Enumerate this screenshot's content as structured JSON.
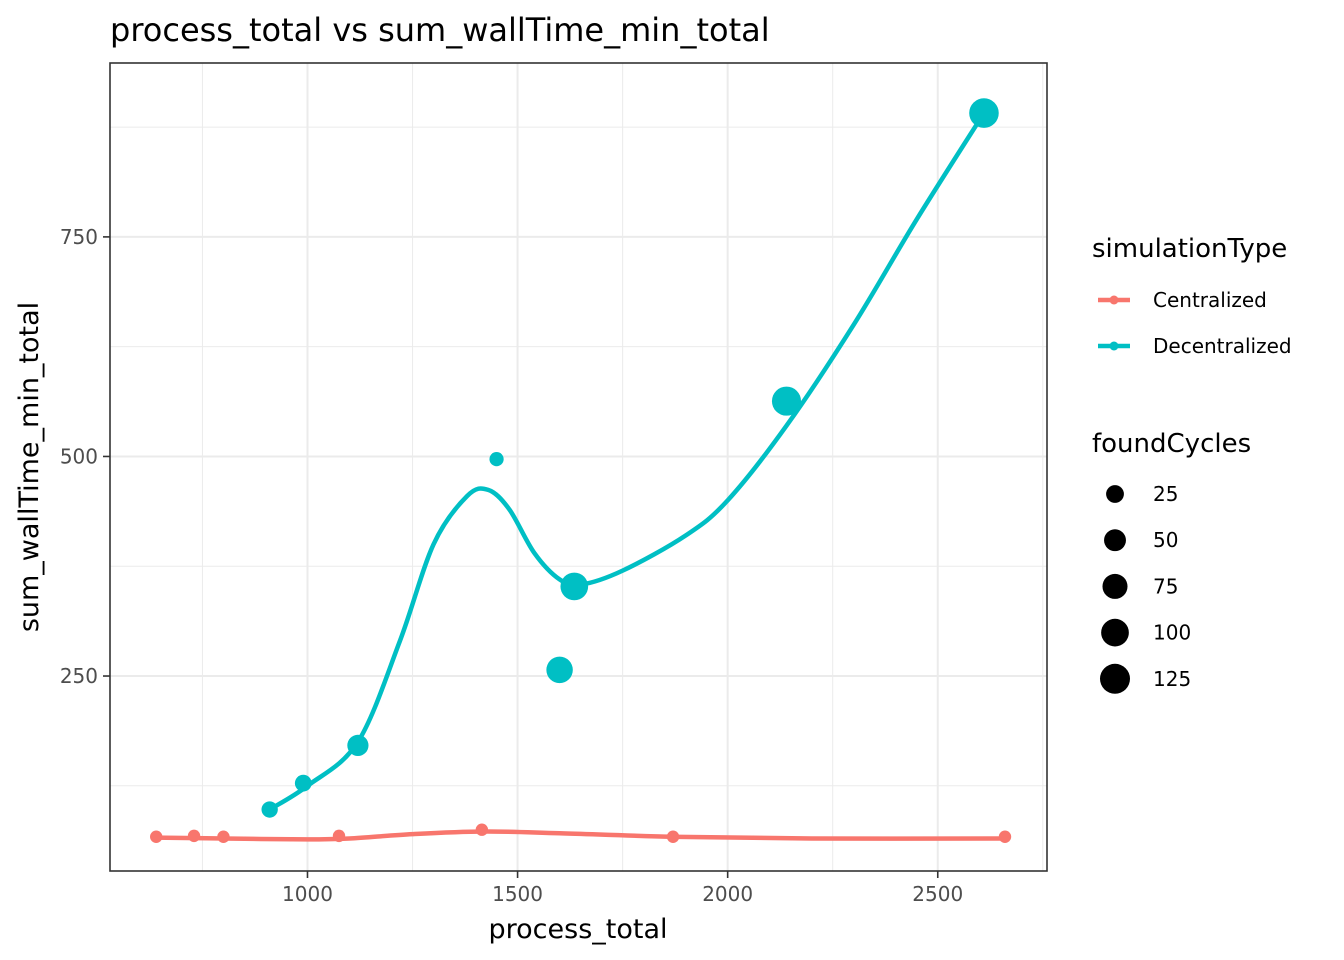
{
  "chart_data": {
    "type": "scatter",
    "title": "process_total  vs  sum_wallTime_min_total",
    "xlabel": "process_total",
    "ylabel": "sum_wallTime_min_total",
    "xlim": [
      530,
      2760
    ],
    "ylim": [
      28,
      948
    ],
    "x_ticks": [
      1000,
      1500,
      2000,
      2500
    ],
    "y_ticks": [
      250,
      500,
      750
    ],
    "grid": true,
    "legend_position": "right",
    "color_legend": {
      "title": "simulationType",
      "entries": [
        {
          "label": "Centralized",
          "color": "#F8766D"
        },
        {
          "label": "Decentralized",
          "color": "#00BFC4"
        }
      ]
    },
    "size_legend": {
      "title": "foundCycles",
      "entries": [
        {
          "label": "25",
          "value": 25
        },
        {
          "label": "50",
          "value": 50
        },
        {
          "label": "75",
          "value": 75
        },
        {
          "label": "100",
          "value": 100
        },
        {
          "label": "125",
          "value": 125
        }
      ]
    },
    "series": [
      {
        "name": "Centralized",
        "color": "#F8766D",
        "points": [
          {
            "x": 640,
            "y": 67,
            "size": 5
          },
          {
            "x": 730,
            "y": 68,
            "size": 5
          },
          {
            "x": 800,
            "y": 67,
            "size": 5
          },
          {
            "x": 1075,
            "y": 68,
            "size": 5
          },
          {
            "x": 1415,
            "y": 75,
            "size": 5
          },
          {
            "x": 1870,
            "y": 67,
            "size": 5
          },
          {
            "x": 2660,
            "y": 67,
            "size": 5
          }
        ],
        "smooth": [
          {
            "x": 640,
            "y": 66
          },
          {
            "x": 800,
            "y": 65
          },
          {
            "x": 1000,
            "y": 64
          },
          {
            "x": 1100,
            "y": 65
          },
          {
            "x": 1250,
            "y": 70
          },
          {
            "x": 1420,
            "y": 73
          },
          {
            "x": 1600,
            "y": 71
          },
          {
            "x": 1870,
            "y": 67
          },
          {
            "x": 2200,
            "y": 65
          },
          {
            "x": 2660,
            "y": 65
          }
        ]
      },
      {
        "name": "Decentralized",
        "color": "#00BFC4",
        "points": [
          {
            "x": 910,
            "y": 98,
            "size": 18
          },
          {
            "x": 990,
            "y": 128,
            "size": 20
          },
          {
            "x": 1120,
            "y": 171,
            "size": 45
          },
          {
            "x": 1450,
            "y": 497,
            "size": 10
          },
          {
            "x": 1600,
            "y": 257,
            "size": 88
          },
          {
            "x": 1635,
            "y": 352,
            "size": 100
          },
          {
            "x": 2140,
            "y": 563,
            "size": 115
          },
          {
            "x": 2610,
            "y": 891,
            "size": 120
          }
        ],
        "smooth": [
          {
            "x": 910,
            "y": 98
          },
          {
            "x": 1000,
            "y": 125
          },
          {
            "x": 1120,
            "y": 175
          },
          {
            "x": 1220,
            "y": 290
          },
          {
            "x": 1300,
            "y": 400
          },
          {
            "x": 1380,
            "y": 455
          },
          {
            "x": 1430,
            "y": 462
          },
          {
            "x": 1480,
            "y": 440
          },
          {
            "x": 1540,
            "y": 390
          },
          {
            "x": 1600,
            "y": 360
          },
          {
            "x": 1650,
            "y": 354
          },
          {
            "x": 1750,
            "y": 370
          },
          {
            "x": 1900,
            "y": 410
          },
          {
            "x": 2000,
            "y": 450
          },
          {
            "x": 2140,
            "y": 535
          },
          {
            "x": 2300,
            "y": 650
          },
          {
            "x": 2450,
            "y": 770
          },
          {
            "x": 2610,
            "y": 891
          }
        ]
      }
    ]
  }
}
